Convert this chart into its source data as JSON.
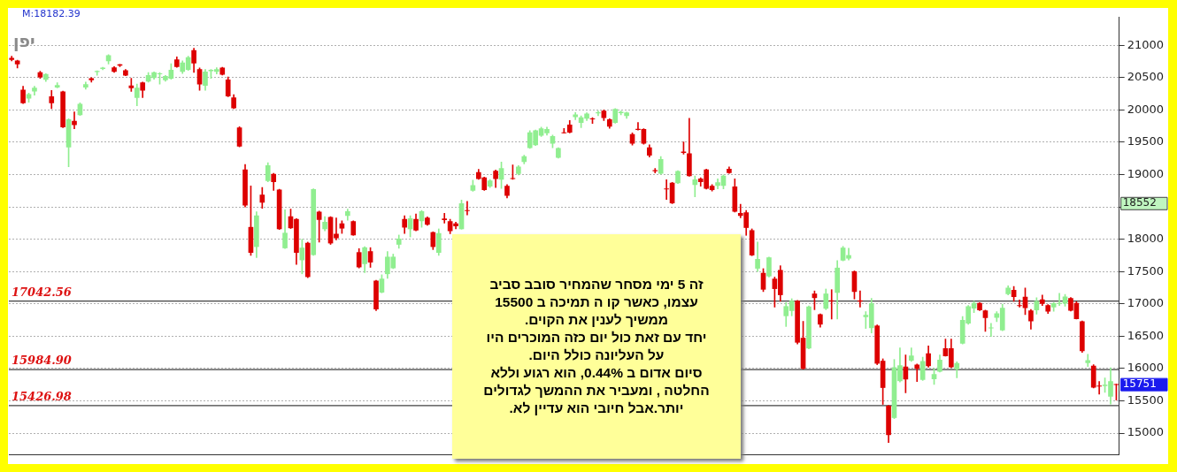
{
  "chart_data": {
    "type": "candlestick",
    "title": "יפן",
    "categories": [
      null,
      null,
      null,
      null,
      null,
      null,
      null,
      null,
      null,
      null,
      null,
      null,
      null,
      null,
      null,
      null,
      null,
      null,
      null,
      null,
      null,
      null,
      null,
      null,
      null,
      null,
      null,
      null,
      null,
      null,
      null,
      null,
      null,
      null,
      null,
      null,
      null,
      null,
      null,
      null,
      null,
      null,
      null,
      null,
      null,
      null,
      null,
      null,
      null,
      null,
      null,
      null,
      null,
      null,
      null,
      null,
      null,
      null,
      null,
      null,
      null,
      null,
      null,
      null,
      null,
      null,
      null,
      null,
      null,
      null,
      null,
      null,
      null,
      null,
      null,
      null,
      null,
      null,
      null,
      null,
      null,
      null,
      null,
      null,
      null,
      null,
      null,
      null,
      null,
      null,
      null,
      null,
      null,
      null,
      null,
      null,
      null,
      null,
      null,
      null,
      null,
      null,
      null,
      null,
      null,
      null,
      null,
      null,
      null,
      null,
      null,
      null,
      null,
      null,
      null,
      null,
      null,
      null,
      null,
      null,
      null,
      null,
      null,
      null,
      null,
      null,
      null,
      null,
      null,
      null,
      null,
      null,
      null,
      null,
      null,
      null,
      null,
      null,
      null,
      null,
      null,
      null,
      null,
      null,
      null,
      null,
      null,
      null,
      null,
      null,
      null,
      null,
      null,
      null,
      null,
      null,
      null,
      null,
      null,
      null,
      null,
      null,
      null,
      null,
      null,
      null,
      null,
      null,
      null,
      null,
      null,
      null,
      null,
      null,
      null,
      null,
      null,
      null,
      null,
      null,
      null,
      null,
      null,
      null,
      null,
      null,
      null,
      null,
      null,
      null,
      null,
      null,
      null,
      null,
      null
    ],
    "ohlc": [
      [
        20800,
        20830,
        20760,
        20780
      ],
      [
        20760,
        20770,
        20650,
        20710
      ],
      [
        20310,
        20365,
        20100,
        20110
      ],
      [
        20180,
        20260,
        20120,
        20240
      ],
      [
        20290,
        20365,
        20230,
        20340
      ],
      [
        20580,
        20600,
        20490,
        20510
      ],
      [
        20470,
        20560,
        20440,
        20550
      ],
      [
        20205,
        20300,
        20020,
        20110
      ],
      [
        20350,
        20420,
        20340,
        20380
      ],
      [
        20280,
        20290,
        19725,
        19735
      ],
      [
        19425,
        19865,
        19120,
        19850
      ],
      [
        19825,
        19970,
        19710,
        19770
      ],
      [
        19925,
        20110,
        19915,
        20090
      ],
      [
        20350,
        20430,
        20320,
        20395
      ],
      [
        20485,
        20500,
        20430,
        20465
      ],
      [
        20590,
        20605,
        20535,
        20600
      ],
      [
        20640,
        20660,
        20620,
        20650
      ],
      [
        20760,
        20855,
        20710,
        20840
      ],
      [
        20655,
        20670,
        20580,
        20595
      ],
      [
        20700,
        20705,
        20670,
        20690
      ],
      [
        20610,
        20625,
        20530,
        20535
      ],
      [
        20375,
        20490,
        20285,
        20340
      ],
      [
        20190,
        20400,
        20065,
        20340
      ],
      [
        20420,
        20430,
        20190,
        20305
      ],
      [
        20445,
        20580,
        20430,
        20535
      ],
      [
        20500,
        20590,
        20475,
        20580
      ],
      [
        20555,
        20580,
        20400,
        20560
      ],
      [
        20465,
        20535,
        20445,
        20520
      ],
      [
        20490,
        20715,
        20475,
        20615
      ],
      [
        20775,
        20820,
        20660,
        20670
      ],
      [
        20595,
        20760,
        20565,
        20730
      ],
      [
        20625,
        20830,
        20610,
        20810
      ],
      [
        20920,
        20955,
        20580,
        20725
      ],
      [
        20625,
        20650,
        20305,
        20400
      ],
      [
        20380,
        20625,
        20305,
        20590
      ],
      [
        20605,
        20625,
        20490,
        20615
      ],
      [
        20595,
        20655,
        20555,
        20625
      ],
      [
        20650,
        20660,
        20540,
        20550
      ],
      [
        20465,
        20510,
        20205,
        20215
      ],
      [
        20190,
        20235,
        20020,
        20030
      ],
      [
        19725,
        19740,
        19430,
        19440
      ],
      [
        19075,
        19155,
        18500,
        18525
      ],
      [
        18185,
        18825,
        17750,
        17795
      ],
      [
        17885,
        18425,
        17715,
        18365
      ],
      [
        18685,
        18800,
        18480,
        18570
      ],
      [
        18905,
        19185,
        18890,
        19140
      ],
      [
        19005,
        19020,
        18755,
        18890
      ],
      [
        18765,
        18775,
        18150,
        18160
      ],
      [
        17865,
        18455,
        17855,
        18095
      ],
      [
        18350,
        18465,
        18165,
        18175
      ],
      [
        18310,
        18320,
        17610,
        17795
      ],
      [
        17680,
        18000,
        17465,
        17865
      ],
      [
        17940,
        17955,
        17405,
        17420
      ],
      [
        17760,
        18780,
        17750,
        18770
      ],
      [
        18420,
        18435,
        17955,
        18305
      ],
      [
        18160,
        18350,
        18130,
        18265
      ],
      [
        18340,
        18350,
        17920,
        17940
      ],
      [
        18080,
        18330,
        17990,
        18020
      ],
      [
        18240,
        18285,
        18090,
        18170
      ],
      [
        18365,
        18465,
        18295,
        18430
      ],
      [
        18275,
        18285,
        18060,
        18065
      ],
      [
        17795,
        17855,
        17555,
        17570
      ],
      [
        17620,
        17885,
        17485,
        17870
      ],
      [
        17810,
        17870,
        17565,
        17645
      ],
      [
        17355,
        17365,
        16895,
        16920
      ],
      [
        17180,
        17450,
        17170,
        17385
      ],
      [
        17465,
        17810,
        17395,
        17725
      ],
      [
        17555,
        17770,
        17545,
        17725
      ],
      [
        17920,
        18065,
        17860,
        18005
      ],
      [
        18310,
        18365,
        18090,
        18185
      ],
      [
        18160,
        18365,
        18035,
        18320
      ],
      [
        18310,
        18390,
        18130,
        18140
      ],
      [
        18285,
        18445,
        18185,
        18430
      ],
      [
        18330,
        18345,
        18215,
        18230
      ],
      [
        18105,
        18115,
        17840,
        17885
      ],
      [
        17795,
        18160,
        17750,
        18090
      ],
      [
        18315,
        18400,
        18250,
        18300
      ],
      [
        18275,
        18310,
        18085,
        18130
      ],
      [
        18240,
        18265,
        18160,
        18205
      ],
      [
        18160,
        18605,
        18155,
        18550
      ],
      [
        18445,
        18585,
        18375,
        18440
      ],
      [
        18755,
        18915,
        18740,
        18830
      ],
      [
        19035,
        19080,
        18925,
        18935
      ],
      [
        18950,
        18960,
        18755,
        18765
      ],
      [
        18820,
        18925,
        18800,
        18905
      ],
      [
        19055,
        19070,
        18800,
        18935
      ],
      [
        18925,
        19195,
        18785,
        19095
      ],
      [
        18820,
        18845,
        18640,
        18675
      ],
      [
        18940,
        19150,
        18925,
        18935
      ],
      [
        19015,
        19140,
        18995,
        19120
      ],
      [
        19200,
        19300,
        19165,
        19280
      ],
      [
        19415,
        19680,
        19405,
        19650
      ],
      [
        19460,
        19690,
        19450,
        19680
      ],
      [
        19605,
        19735,
        19590,
        19710
      ],
      [
        19645,
        19735,
        19610,
        19700
      ],
      [
        19485,
        19610,
        19415,
        19590
      ],
      [
        19265,
        19415,
        19255,
        19405
      ],
      [
        19650,
        19715,
        19640,
        19645
      ],
      [
        19770,
        19835,
        19645,
        19655
      ],
      [
        19895,
        19960,
        19850,
        19925
      ],
      [
        19805,
        19910,
        19725,
        19880
      ],
      [
        19870,
        19955,
        19835,
        19940
      ],
      [
        19865,
        19880,
        19790,
        19860
      ],
      [
        19950,
        19985,
        19910,
        19960
      ],
      [
        19985,
        20000,
        19835,
        19880
      ],
      [
        19850,
        19865,
        19715,
        19745
      ],
      [
        19805,
        20020,
        19795,
        20010
      ],
      [
        19955,
        19985,
        19925,
        19965
      ],
      [
        19910,
        19965,
        19870,
        19955
      ],
      [
        19620,
        19645,
        19455,
        19485
      ],
      [
        19705,
        19805,
        19690,
        19695
      ],
      [
        19700,
        19710,
        19470,
        19485
      ],
      [
        19415,
        19460,
        19270,
        19300
      ],
      [
        19065,
        19095,
        19025,
        19055
      ],
      [
        19020,
        19280,
        19005,
        19235
      ],
      [
        18780,
        18920,
        18615,
        18775
      ],
      [
        18870,
        18880,
        18550,
        18560
      ],
      [
        18870,
        19060,
        18860,
        19050
      ],
      [
        19350,
        19505,
        19315,
        19340
      ],
      [
        19325,
        19870,
        18975,
        18980
      ],
      [
        18845,
        18980,
        18655,
        18920
      ],
      [
        18935,
        18950,
        18820,
        18890
      ],
      [
        19075,
        19085,
        18775,
        18785
      ],
      [
        18820,
        18845,
        18745,
        18765
      ],
      [
        18830,
        18935,
        18780,
        18875
      ],
      [
        18830,
        18995,
        18780,
        18980
      ],
      [
        19085,
        19120,
        19020,
        19030
      ],
      [
        18810,
        18935,
        18420,
        18430
      ],
      [
        18400,
        18540,
        18330,
        18365
      ],
      [
        18410,
        18445,
        18060,
        18180
      ],
      [
        18135,
        18160,
        17745,
        17755
      ],
      [
        17550,
        17955,
        17500,
        17690
      ],
      [
        17475,
        17545,
        17190,
        17225
      ],
      [
        17430,
        17725,
        17415,
        17715
      ],
      [
        17385,
        17415,
        16950,
        17235
      ],
      [
        17520,
        17590,
        17040,
        17140
      ],
      [
        16815,
        17020,
        16650,
        16960
      ],
      [
        16895,
        17080,
        16815,
        17045
      ],
      [
        17045,
        17055,
        16380,
        16405
      ],
      [
        16470,
        16730,
        15990,
        16000
      ],
      [
        16315,
        16970,
        16305,
        16955
      ],
      [
        17155,
        17200,
        16910,
        17095
      ],
      [
        16835,
        16845,
        16640,
        16685
      ],
      [
        16930,
        17230,
        16910,
        17155
      ],
      [
        17050,
        17220,
        16765,
        17045
      ],
      [
        17175,
        17670,
        16765,
        17555
      ],
      [
        17675,
        17890,
        17665,
        17865
      ],
      [
        17705,
        17860,
        17680,
        17750
      ],
      [
        17500,
        17510,
        17075,
        17190
      ],
      [
        17050,
        17200,
        16950,
        17040
      ],
      [
        16800,
        16880,
        16620,
        16825
      ],
      [
        16630,
        17085,
        16550,
        17005
      ],
      [
        16660,
        16675,
        16060,
        16080
      ],
      [
        16115,
        16150,
        15445,
        15705
      ],
      [
        15420,
        15430,
        14855,
        14975
      ],
      [
        15240,
        16140,
        15225,
        16015
      ],
      [
        15810,
        16320,
        15790,
        16045
      ],
      [
        16025,
        16210,
        15625,
        15835
      ],
      [
        16125,
        16320,
        16110,
        16195
      ],
      [
        16055,
        16070,
        15800,
        16000
      ],
      [
        15830,
        16175,
        15815,
        16110
      ],
      [
        16230,
        16350,
        16020,
        16040
      ],
      [
        15840,
        16000,
        15755,
        15910
      ],
      [
        15955,
        16210,
        15945,
        16130
      ],
      [
        16310,
        16455,
        16190,
        16195
      ],
      [
        16310,
        16455,
        16015,
        16025
      ],
      [
        15990,
        16105,
        15855,
        16080
      ],
      [
        16390,
        16805,
        16380,
        16745
      ],
      [
        16700,
        16975,
        16685,
        16960
      ],
      [
        16935,
        17040,
        16865,
        17010
      ],
      [
        17010,
        17020,
        16895,
        16905
      ],
      [
        16895,
        16905,
        16575,
        16785
      ],
      [
        16625,
        16700,
        16495,
        16630
      ],
      [
        16790,
        16880,
        16725,
        16850
      ],
      [
        16595,
        16995,
        16585,
        16935
      ],
      [
        17155,
        17280,
        17140,
        17245
      ],
      [
        17210,
        17270,
        17040,
        17110
      ],
      [
        16975,
        17060,
        16950,
        16970
      ],
      [
        17105,
        17245,
        16835,
        16940
      ],
      [
        16895,
        16915,
        16610,
        16735
      ],
      [
        16905,
        17095,
        16840,
        17040
      ],
      [
        17065,
        17135,
        16975,
        17005
      ],
      [
        16975,
        16990,
        16850,
        16885
      ],
      [
        16950,
        17020,
        16885,
        17005
      ],
      [
        17005,
        17165,
        16975,
        17010
      ],
      [
        17010,
        17145,
        16965,
        17110
      ],
      [
        17085,
        17100,
        16890,
        16900
      ],
      [
        17010,
        17035,
        16765,
        16770
      ],
      [
        16725,
        16735,
        16250,
        16275
      ],
      [
        16090,
        16220,
        16030,
        16125
      ],
      [
        16040,
        16060,
        15700,
        15710
      ],
      [
        15730,
        15800,
        15605,
        15725
      ],
      [
        15735,
        15855,
        15630,
        15745
      ],
      [
        15570,
        16010,
        15450,
        15800
      ],
      [
        15755,
        15760,
        15510,
        15751
      ]
    ],
    "colors": [
      "#dd0000",
      "#dd0000",
      "#dd0000",
      "#90ee90",
      "#90ee90",
      "#dd0000",
      "#90ee90",
      "#dd0000",
      "#90ee90",
      "#dd0000",
      "#90ee90",
      "#dd0000",
      "#90ee90",
      "#90ee90",
      "#dd0000",
      "#90ee90",
      "#90ee90",
      "#90ee90",
      "#dd0000",
      "#dd0000",
      "#dd0000",
      "#dd0000",
      "#90ee90",
      "#dd0000",
      "#90ee90",
      "#90ee90",
      "#90ee90",
      "#90ee90",
      "#90ee90",
      "#dd0000",
      "#90ee90",
      "#90ee90",
      "#dd0000",
      "#dd0000",
      "#90ee90",
      "#90ee90",
      "#90ee90",
      "#dd0000",
      "#dd0000",
      "#dd0000",
      "#dd0000",
      "#dd0000",
      "#dd0000",
      "#90ee90",
      "#dd0000",
      "#90ee90",
      "#dd0000",
      "#dd0000",
      "#90ee90",
      "#dd0000",
      "#dd0000",
      "#90ee90",
      "#dd0000",
      "#90ee90",
      "#dd0000",
      "#90ee90",
      "#dd0000",
      "#dd0000",
      "#dd0000",
      "#90ee90",
      "#dd0000",
      "#dd0000",
      "#90ee90",
      "#dd0000",
      "#dd0000",
      "#90ee90",
      "#90ee90",
      "#90ee90",
      "#90ee90",
      "#dd0000",
      "#90ee90",
      "#dd0000",
      "#90ee90",
      "#dd0000",
      "#dd0000",
      "#90ee90",
      "#dd0000",
      "#dd0000",
      "#dd0000",
      "#90ee90",
      "#dd0000",
      "#90ee90",
      "#dd0000",
      "#dd0000",
      "#90ee90",
      "#dd0000",
      "#90ee90",
      "#dd0000",
      "#dd0000",
      "#90ee90",
      "#90ee90",
      "#90ee90",
      "#90ee90",
      "#90ee90",
      "#90ee90",
      "#90ee90",
      "#90ee90",
      "#dd0000",
      "#dd0000",
      "#90ee90",
      "#90ee90",
      "#90ee90",
      "#dd0000",
      "#90ee90",
      "#dd0000",
      "#dd0000",
      "#90ee90",
      "#90ee90",
      "#90ee90",
      "#dd0000",
      "#dd0000",
      "#dd0000",
      "#dd0000",
      "#dd0000",
      "#90ee90",
      "#dd0000",
      "#dd0000",
      "#90ee90",
      "#dd0000",
      "#dd0000",
      "#90ee90",
      "#dd0000",
      "#dd0000",
      "#dd0000",
      "#90ee90",
      "#90ee90",
      "#dd0000",
      "#dd0000",
      "#dd0000",
      "#dd0000",
      "#dd0000",
      "#90ee90",
      "#dd0000",
      "#90ee90",
      "#dd0000",
      "#dd0000",
      "#90ee90",
      "#90ee90",
      "#dd0000",
      "#dd0000",
      "#90ee90",
      "#dd0000",
      "#dd0000",
      "#90ee90",
      "#dd0000",
      "#90ee90",
      "#90ee90",
      "#90ee90",
      "#dd0000",
      "#dd0000",
      "#90ee90",
      "#90ee90",
      "#dd0000",
      "#dd0000",
      "#dd0000",
      "#90ee90",
      "#90ee90",
      "#dd0000",
      "#90ee90",
      "#dd0000",
      "#90ee90",
      "#dd0000",
      "#90ee90",
      "#90ee90",
      "#dd0000",
      "#dd0000",
      "#90ee90",
      "#90ee90",
      "#90ee90",
      "#90ee90",
      "#dd0000",
      "#dd0000",
      "#90ee90",
      "#90ee90",
      "#90ee90",
      "#90ee90",
      "#dd0000",
      "#dd0000",
      "#dd0000",
      "#dd0000",
      "#90ee90",
      "#dd0000",
      "#dd0000",
      "#90ee90",
      "#90ee90",
      "#90ee90",
      "#dd0000",
      "#dd0000",
      "#dd0000",
      "#90ee90",
      "#dd0000",
      "#dd0000",
      "#90ee90",
      "#90ee90",
      "#dd0000"
    ],
    "ylim": [
      14670,
      21430
    ],
    "yticks": [
      15000,
      15500,
      16000,
      16500,
      17000,
      17500,
      18000,
      {
        "value": 18500,
        "label": null
      },
      19000,
      19500,
      20000,
      20500,
      21000
    ],
    "grid": "y",
    "legend": false,
    "tick_labels": "y",
    "ref_lines": [
      {
        "axis": "y",
        "value": 17042.56,
        "label": "17042.56",
        "color": "#404040"
      },
      {
        "axis": "y",
        "value": 15984.9,
        "label": "15984.90",
        "color": "#404040"
      },
      {
        "axis": "y",
        "value": 15426.98,
        "label": "15426.98",
        "color": "#404040"
      }
    ],
    "annotations": [
      "M:18182.39",
      "18552",
      "15751",
      "זה 5 ימי מסחר שהמחיר סובב סביב\nעצמו, כאשר קו ה תמיכה ב 15500\nממשיך לענין את הקוים.\nיחד עם זאת כול יום כזה המוכרים היו\nעל העליונה כולל היום.\nסיום אדום ב 0.44%, הוא רגוע וללא\nהחלטה , ומעביר את ההמשך לגדולים\nיותר.אבל חיובי הוא עדיין לא."
    ]
  }
}
